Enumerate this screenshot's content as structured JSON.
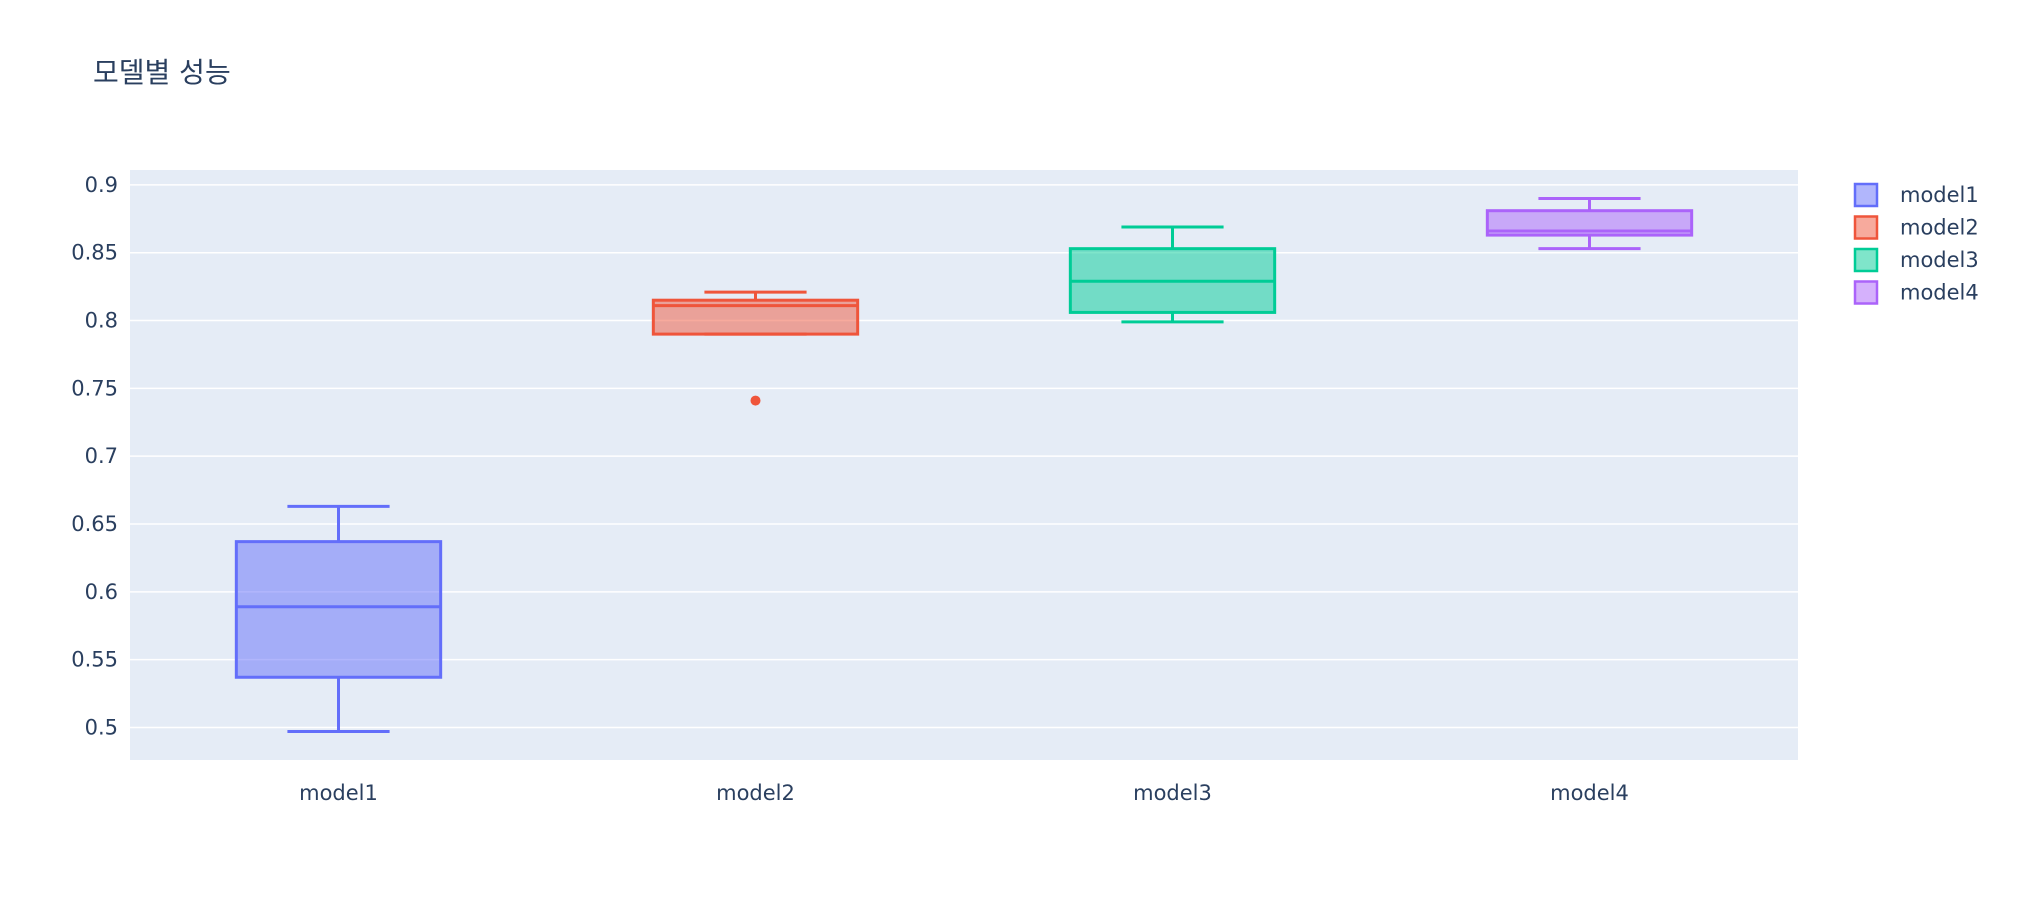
{
  "chart_data": {
    "type": "box",
    "title": "모델별 성능",
    "xlabel": "",
    "ylabel": "",
    "categories": [
      "model1",
      "model2",
      "model3",
      "model4"
    ],
    "y_ticks": [
      "0.5",
      "0.55",
      "0.6",
      "0.65",
      "0.7",
      "0.75",
      "0.8",
      "0.85",
      "0.9"
    ],
    "y_tick_values": [
      0.5,
      0.55,
      0.6,
      0.65,
      0.7,
      0.75,
      0.8,
      0.85,
      0.9
    ],
    "ylim": [
      0.476,
      0.911
    ],
    "grid": true,
    "legend_position": "top-right",
    "series": [
      {
        "name": "model1",
        "color": "#636efa",
        "fill": "rgba(99,110,250,0.5)",
        "min": 0.497,
        "q1": 0.537,
        "median": 0.589,
        "q3": 0.637,
        "max": 0.663,
        "outliers": []
      },
      {
        "name": "model2",
        "color": "#ef553b",
        "fill": "rgba(239,85,59,0.5)",
        "min": 0.79,
        "q1": 0.79,
        "median": 0.811,
        "q3": 0.815,
        "max": 0.821,
        "outliers": [
          0.741
        ]
      },
      {
        "name": "model3",
        "color": "#00cc96",
        "fill": "rgba(0,204,150,0.5)",
        "min": 0.799,
        "q1": 0.806,
        "median": 0.829,
        "q3": 0.853,
        "max": 0.869,
        "outliers": []
      },
      {
        "name": "model4",
        "color": "#ab63fa",
        "fill": "rgba(171,99,250,0.5)",
        "min": 0.853,
        "q1": 0.863,
        "median": 0.866,
        "q3": 0.881,
        "max": 0.89,
        "outliers": []
      }
    ]
  }
}
